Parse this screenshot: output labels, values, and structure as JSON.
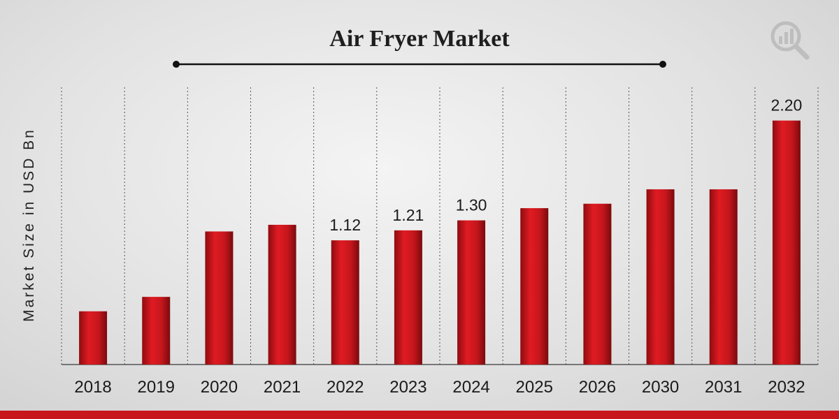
{
  "chart_data": {
    "type": "bar",
    "title": "Air Fryer Market",
    "xlabel": "",
    "ylabel": "Market Size in USD Bn",
    "categories": [
      "2018",
      "2019",
      "2020",
      "2021",
      "2022",
      "2023",
      "2024",
      "2025",
      "2026",
      "2030",
      "2031",
      "2032"
    ],
    "values": [
      0.48,
      0.61,
      1.2,
      1.26,
      1.12,
      1.21,
      1.3,
      1.41,
      1.45,
      1.58,
      1.58,
      2.2
    ],
    "data_labels": [
      "",
      "",
      "",
      "",
      "1.12",
      "1.21",
      "1.30",
      "",
      "",
      "",
      "",
      "2.20"
    ],
    "ylim": [
      0,
      2.5
    ],
    "grid": "vertical dotted separators",
    "bar_color": "#c4161c",
    "watermark_icon": "magnifier-chart-icon"
  }
}
